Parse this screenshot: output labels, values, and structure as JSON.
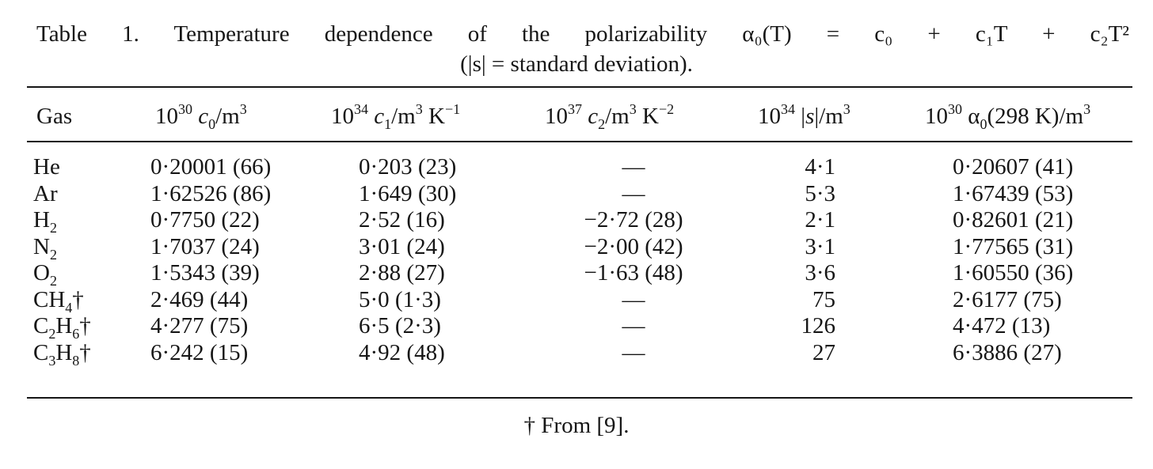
{
  "caption": {
    "line1": "Table 1. Temperature dependence of the polarizability α₀(T) = c₀ + c₁T + c₂T²",
    "line2": "(|s| = standard deviation)."
  },
  "headers": {
    "gas": "Gas",
    "c0": "10^30 c0/m^3",
    "c1": "10^34 c1/m^3 K^-1",
    "c2": "10^37 c2/m^3 K^-2",
    "s": "10^34 |s|/m^3",
    "alpha": "10^30 α0(298 K)/m^3"
  },
  "rows": [
    {
      "gas": "He",
      "c0": "0·20001 (66)",
      "c1": "0·203 (23)",
      "c2": "—",
      "s": "4·1",
      "alpha": "0·20607 (41)"
    },
    {
      "gas": "Ar",
      "c0": "1·62526 (86)",
      "c1": "1·649 (30)",
      "c2": "—",
      "s": "5·3",
      "alpha": "1·67439 (53)"
    },
    {
      "gas": "H2",
      "c0": "0·7750 (22)",
      "c1": "2·52 (16)",
      "c2": "−2·72 (28)",
      "s": "2·1",
      "alpha": "0·82601 (21)"
    },
    {
      "gas": "N2",
      "c0": "1·7037 (24)",
      "c1": "3·01 (24)",
      "c2": "−2·00 (42)",
      "s": "3·1",
      "alpha": "1·77565 (31)"
    },
    {
      "gas": "O2",
      "c0": "1·5343 (39)",
      "c1": "2·88 (27)",
      "c2": "−1·63 (48)",
      "s": "3·6",
      "alpha": "1·60550 (36)"
    },
    {
      "gas": "CH4†",
      "c0": "2·469 (44)",
      "c1": "5·0 (1·3)",
      "c2": "—",
      "s": "75",
      "alpha": "2·6177 (75)"
    },
    {
      "gas": "C2H6†",
      "c0": "4·277 (75)",
      "c1": "6·5 (2·3)",
      "c2": "—",
      "s": "126",
      "alpha": "4·472 (13)"
    },
    {
      "gas": "C3H8†",
      "c0": "6·242 (15)",
      "c1": "4·92 (48)",
      "c2": "—",
      "s": "27",
      "alpha": "6·3886 (27)"
    }
  ],
  "footnote": "† From [9]."
}
